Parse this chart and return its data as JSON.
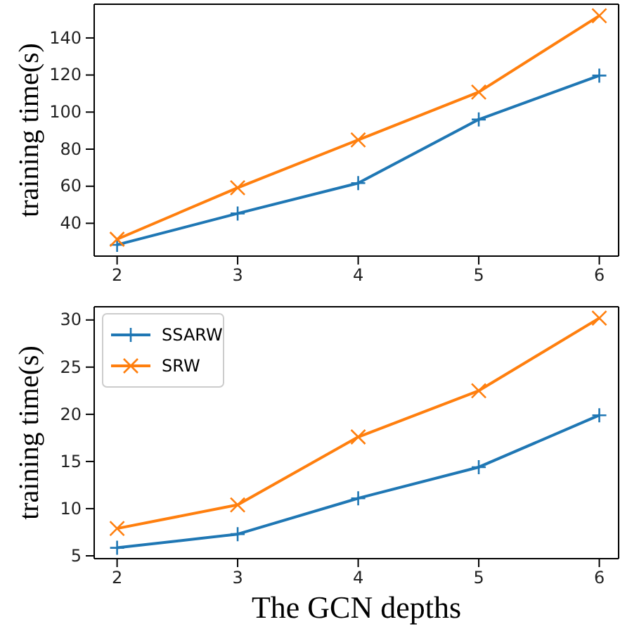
{
  "chart_data": [
    {
      "type": "line",
      "ylabel": "training time(s)",
      "x": [
        2,
        3,
        4,
        5,
        6
      ],
      "xlim": [
        1.81,
        6.16
      ],
      "xticks": [
        2,
        3,
        4,
        5,
        6
      ],
      "ylim": [
        22.3,
        158.2
      ],
      "yticks": [
        40,
        60,
        80,
        100,
        120,
        140
      ],
      "grid": false,
      "legend": false,
      "series": [
        {
          "color": "#1f77b4",
          "marker": "plus",
          "values": [
            28.4,
            45.3,
            61.7,
            96,
            119.7
          ]
        },
        {
          "color": "#ff7f0e",
          "marker": "cross",
          "values": [
            31.4,
            59.2,
            85,
            110.8,
            152
          ]
        }
      ]
    },
    {
      "type": "line",
      "ylabel": "training time(s)",
      "xlabel": "The GCN depths",
      "x": [
        2,
        3,
        4,
        5,
        6
      ],
      "xlim": [
        1.81,
        6.16
      ],
      "xticks": [
        2,
        3,
        4,
        5,
        6
      ],
      "ylim": [
        4.7,
        31.4
      ],
      "yticks": [
        5,
        10,
        15,
        20,
        25,
        30
      ],
      "grid": false,
      "legend": "top left",
      "series": [
        {
          "name": "SSARW",
          "color": "#1f77b4",
          "marker": "plus",
          "values": [
            5.85,
            7.3,
            11.1,
            14.4,
            19.9
          ]
        },
        {
          "name": "SRW",
          "color": "#ff7f0e",
          "marker": "cross",
          "values": [
            7.9,
            10.4,
            17.6,
            22.5,
            30.2
          ]
        }
      ]
    }
  ]
}
